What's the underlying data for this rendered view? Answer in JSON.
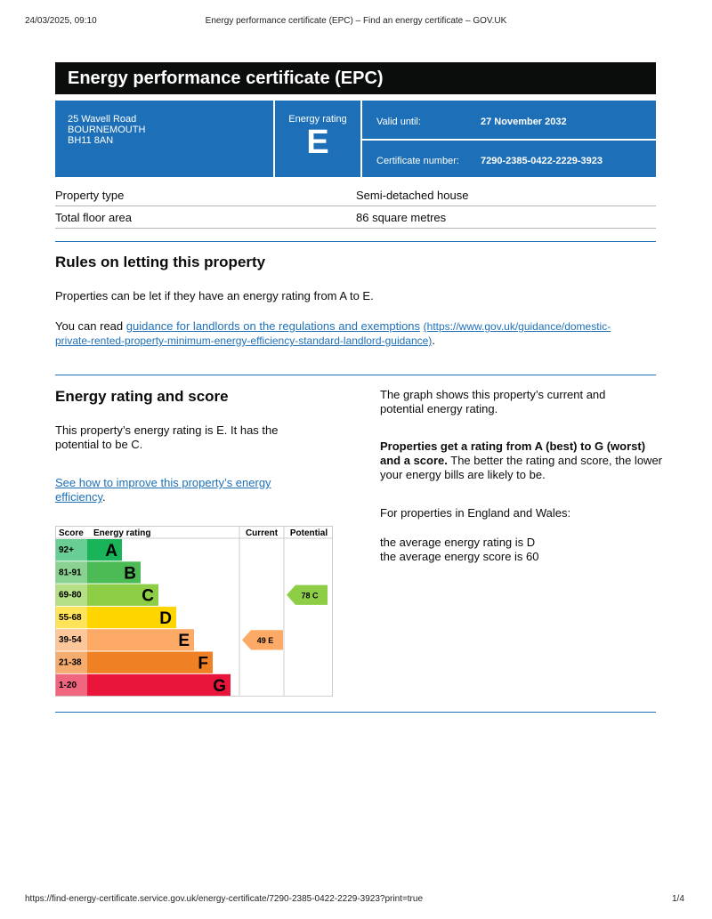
{
  "browser_header": {
    "datetime": "24/03/2025, 09:10",
    "page_title": "Energy performance certificate (EPC) – Find an energy certificate – GOV.UK"
  },
  "title": "Energy performance certificate (EPC)",
  "summary": {
    "address": [
      "25 Wavell Road",
      "BOURNEMOUTH",
      "BH11 8AN"
    ],
    "rating_label": "Energy rating",
    "rating": "E",
    "valid_until_label": "Valid until:",
    "valid_until": "27 November 2032",
    "certificate_number_label": "Certificate number:",
    "certificate_number": "7290-2385-0422-2229-3923"
  },
  "property_table": [
    [
      "Property type",
      "Semi-detached house"
    ],
    [
      "Total floor area",
      "86 square metres"
    ]
  ],
  "rules": {
    "heading": "Rules on letting this property",
    "paragraph": "Properties can be let if they have an energy rating from A to E.",
    "read_prefix": "You can read ",
    "link_text": "guidance for landlords on the regulations and exemptions",
    "link_url": "(https://www.gov.uk/guidance/domestic-private-rented-property-minimum-energy-efficiency-standard-landlord-guidance)",
    "read_suffix": "."
  },
  "energy": {
    "heading": "Energy rating and score",
    "summary": "This property’s energy rating is E. It has the potential to be C.",
    "improve_link": "See how to improve this property’s energy efficiency",
    "improve_suffix": ".",
    "graph_intro": "The graph shows this property’s current and potential energy rating.",
    "bold": "Properties get a rating from A (best) to G (worst) and a score.",
    "explanation": " The better the rating and score, the lower your energy bills are likely to be.",
    "england_wales": "For properties in England and Wales:",
    "average_rating": "the average energy rating is D",
    "average_score": "the average energy score is 60"
  },
  "epc_graph": {
    "headers": {
      "score": "Score",
      "rating": "Energy rating",
      "current": "Current",
      "potential": "Potential"
    },
    "bands": [
      {
        "score": "92+",
        "letter": "A",
        "color": "#19b459"
      },
      {
        "score": "81-91",
        "letter": "B",
        "color": "#4cbb56"
      },
      {
        "score": "69-80",
        "letter": "C",
        "color": "#8dce46"
      },
      {
        "score": "55-68",
        "letter": "D",
        "color": "#ffd500"
      },
      {
        "score": "39-54",
        "letter": "E",
        "color": "#fcaa65"
      },
      {
        "score": "21-38",
        "letter": "F",
        "color": "#ef8023"
      },
      {
        "score": "1-20",
        "letter": "G",
        "color": "#e9153b"
      }
    ],
    "current": {
      "label": "49 E"
    },
    "potential": {
      "label": "78 C"
    }
  },
  "footer": {
    "url": "https://find-energy-certificate.service.gov.uk/energy-certificate/7290-2385-0422-2229-3923?print=true",
    "page": "1/4"
  }
}
